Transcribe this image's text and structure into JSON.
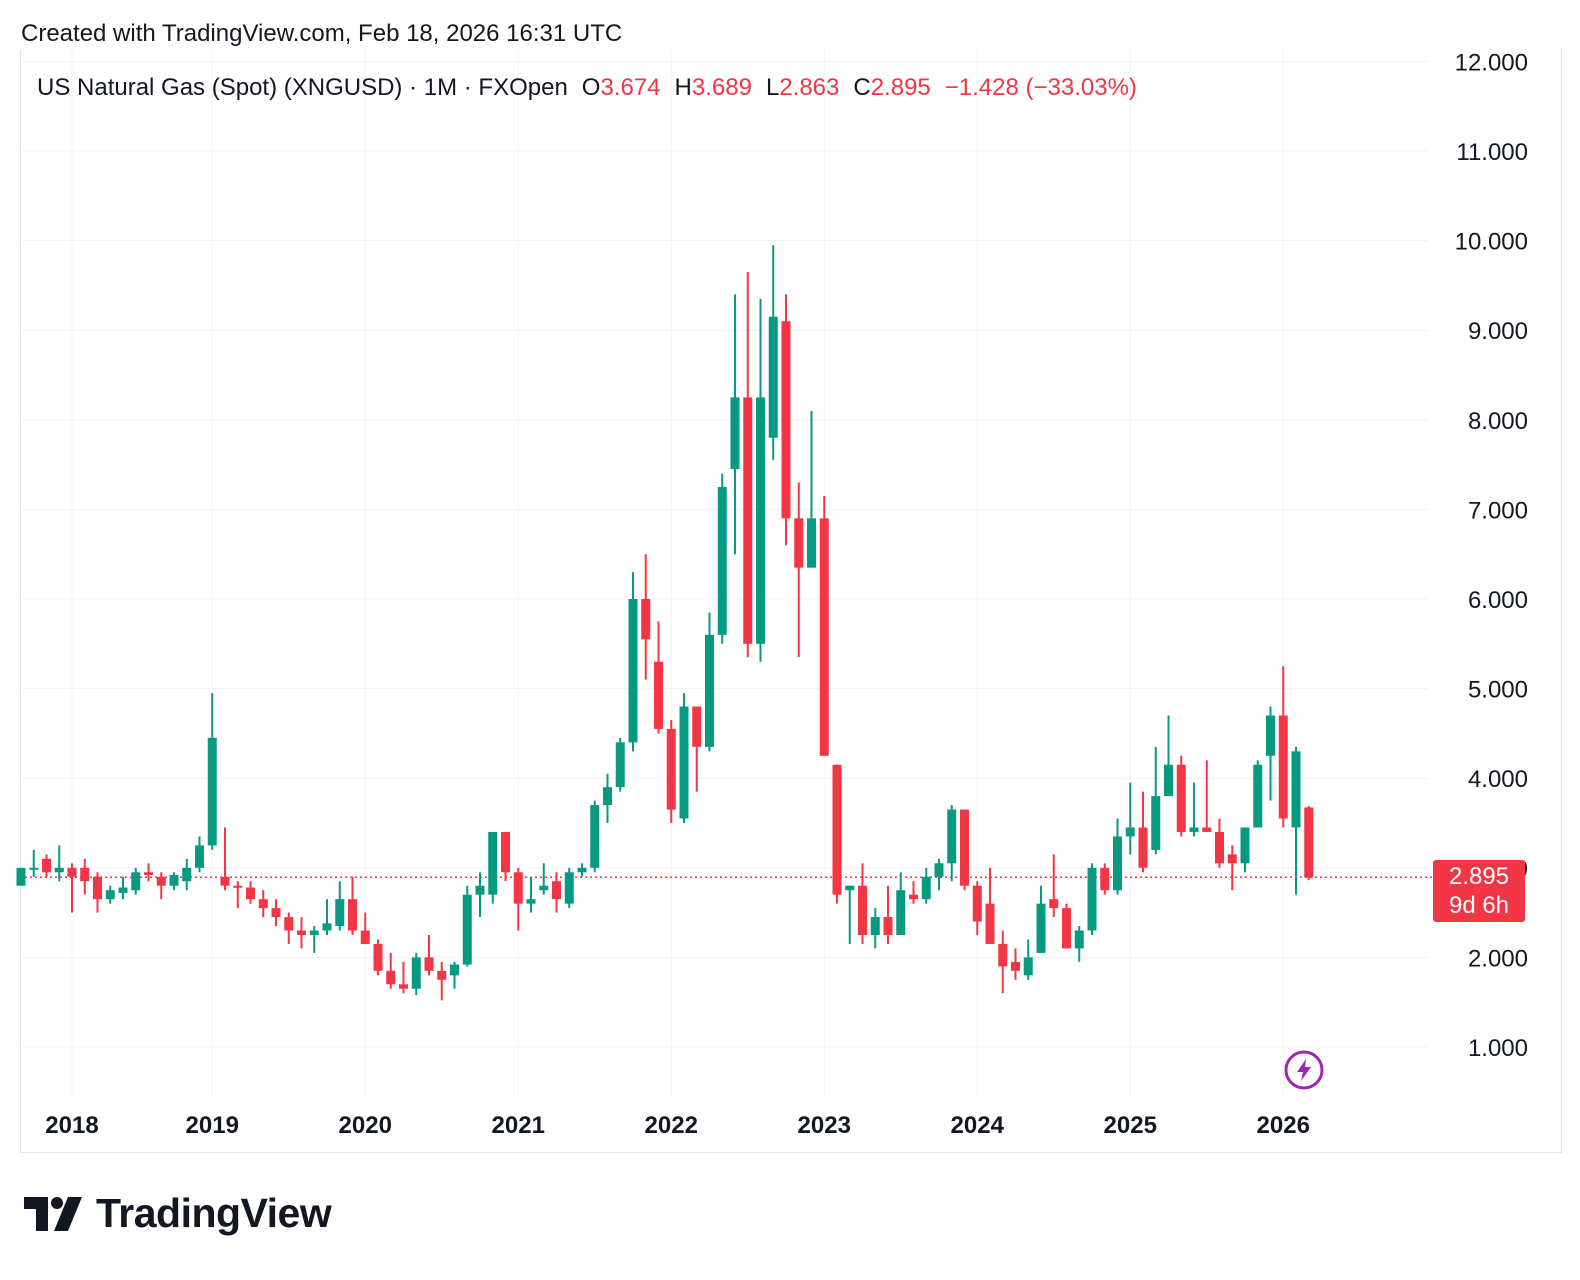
{
  "header": {
    "created_text": "Created with TradingView.com, Feb 18, 2026 16:31 UTC"
  },
  "legend": {
    "symbol": "US Natural Gas (Spot) (XNGUSD) · 1M · FXOpen",
    "open_label": "O",
    "open_value": "3.674",
    "high_label": "H",
    "high_value": "3.689",
    "low_label": "L",
    "low_value": "2.863",
    "close_label": "C",
    "close_value": "2.895",
    "change": "−1.428 (−33.03%)"
  },
  "price_tag": {
    "price": "2.895",
    "countdown": "9d 6h"
  },
  "brand": {
    "name": "TradingView"
  },
  "colors": {
    "up": "#089981",
    "down": "#f23645",
    "grid": "#f0f3fa",
    "text": "#131722",
    "alert": "#9c27b0"
  },
  "icons": {
    "logo": "tradingview-logo-icon",
    "alert": "lightning-alert-icon"
  },
  "chart_data": {
    "type": "candlestick",
    "title": "US Natural Gas (Spot) (XNGUSD) · 1M · FXOpen",
    "interval": "1M",
    "y_ticks": [
      "1.000",
      "2.000",
      "3.000",
      "4.000",
      "5.000",
      "6.000",
      "7.000",
      "8.000",
      "9.000",
      "10.000",
      "11.000",
      "12.000"
    ],
    "ylim": [
      0.45,
      12.1
    ],
    "x_ticks": [
      {
        "label": "2018",
        "index": 4
      },
      {
        "label": "2019",
        "index": 15
      },
      {
        "label": "2020",
        "index": 27
      },
      {
        "label": "2021",
        "index": 39
      },
      {
        "label": "2022",
        "index": 51
      },
      {
        "label": "2023",
        "index": 63
      },
      {
        "label": "2024",
        "index": 75
      },
      {
        "label": "2025",
        "index": 87
      },
      {
        "label": "2026",
        "index": 99
      }
    ],
    "last_price": 2.895,
    "candles": [
      [
        2.8,
        3.0,
        2.8,
        3.0
      ],
      [
        3.0,
        3.2,
        2.9,
        3.0
      ],
      [
        3.1,
        3.15,
        2.9,
        2.95
      ],
      [
        2.95,
        3.25,
        2.85,
        3.0
      ],
      [
        3.0,
        3.05,
        2.5,
        2.9
      ],
      [
        3.0,
        3.1,
        2.7,
        2.85
      ],
      [
        2.9,
        2.95,
        2.5,
        2.65
      ],
      [
        2.65,
        2.8,
        2.6,
        2.75
      ],
      [
        2.72,
        2.9,
        2.65,
        2.78
      ],
      [
        2.75,
        3.0,
        2.7,
        2.95
      ],
      [
        2.95,
        3.05,
        2.85,
        2.92
      ],
      [
        2.9,
        2.95,
        2.65,
        2.8
      ],
      [
        2.8,
        2.95,
        2.75,
        2.92
      ],
      [
        2.85,
        3.1,
        2.75,
        3.0
      ],
      [
        3.0,
        3.35,
        2.95,
        3.25
      ],
      [
        3.25,
        4.95,
        3.2,
        4.45
      ],
      [
        2.9,
        3.45,
        2.75,
        2.8
      ],
      [
        2.8,
        2.85,
        2.55,
        2.78
      ],
      [
        2.78,
        2.85,
        2.6,
        2.65
      ],
      [
        2.65,
        2.75,
        2.45,
        2.55
      ],
      [
        2.55,
        2.65,
        2.35,
        2.45
      ],
      [
        2.45,
        2.5,
        2.15,
        2.3
      ],
      [
        2.3,
        2.45,
        2.1,
        2.25
      ],
      [
        2.25,
        2.35,
        2.05,
        2.3
      ],
      [
        2.3,
        2.65,
        2.25,
        2.38
      ],
      [
        2.35,
        2.85,
        2.3,
        2.65
      ],
      [
        2.65,
        2.9,
        2.25,
        2.3
      ],
      [
        2.3,
        2.5,
        2.15,
        2.15
      ],
      [
        2.15,
        2.2,
        1.8,
        1.85
      ],
      [
        1.85,
        2.05,
        1.65,
        1.7
      ],
      [
        1.7,
        1.95,
        1.6,
        1.65
      ],
      [
        1.65,
        2.05,
        1.58,
        2.0
      ],
      [
        2.0,
        2.25,
        1.8,
        1.85
      ],
      [
        1.85,
        1.95,
        1.52,
        1.75
      ],
      [
        1.8,
        1.95,
        1.65,
        1.92
      ],
      [
        1.92,
        2.8,
        1.9,
        2.7
      ],
      [
        2.7,
        2.95,
        2.45,
        2.8
      ],
      [
        2.7,
        3.4,
        2.6,
        3.4
      ],
      [
        3.4,
        3.4,
        2.85,
        2.95
      ],
      [
        2.95,
        3.0,
        2.3,
        2.6
      ],
      [
        2.6,
        2.9,
        2.5,
        2.65
      ],
      [
        2.75,
        3.05,
        2.7,
        2.8
      ],
      [
        2.85,
        2.95,
        2.5,
        2.65
      ],
      [
        2.6,
        3.0,
        2.55,
        2.95
      ],
      [
        2.95,
        3.05,
        2.9,
        3.0
      ],
      [
        3.0,
        3.75,
        2.95,
        3.7
      ],
      [
        3.7,
        4.05,
        3.5,
        3.9
      ],
      [
        3.9,
        4.45,
        3.85,
        4.4
      ],
      [
        4.4,
        6.3,
        4.3,
        6.0
      ],
      [
        6.0,
        6.5,
        5.1,
        5.55
      ],
      [
        5.3,
        5.75,
        4.5,
        4.55
      ],
      [
        4.55,
        4.65,
        3.5,
        3.65
      ],
      [
        3.55,
        4.95,
        3.5,
        4.8
      ],
      [
        4.8,
        4.8,
        3.85,
        4.35
      ],
      [
        4.35,
        5.85,
        4.3,
        5.6
      ],
      [
        5.6,
        7.4,
        5.5,
        7.25
      ],
      [
        7.45,
        9.4,
        6.5,
        8.25
      ],
      [
        8.25,
        9.65,
        5.35,
        5.5
      ],
      [
        5.5,
        9.35,
        5.3,
        8.25
      ],
      [
        7.8,
        9.95,
        7.55,
        9.15
      ],
      [
        9.1,
        9.4,
        6.6,
        6.9
      ],
      [
        6.9,
        7.3,
        5.35,
        6.35
      ],
      [
        6.35,
        8.1,
        6.35,
        6.9
      ],
      [
        6.9,
        7.15,
        4.25,
        4.25
      ],
      [
        4.15,
        4.15,
        2.6,
        2.7
      ],
      [
        2.75,
        2.8,
        2.15,
        2.8
      ],
      [
        2.8,
        3.05,
        2.15,
        2.25
      ],
      [
        2.25,
        2.55,
        2.1,
        2.45
      ],
      [
        2.45,
        2.8,
        2.15,
        2.25
      ],
      [
        2.25,
        2.95,
        2.25,
        2.75
      ],
      [
        2.7,
        2.85,
        2.6,
        2.65
      ],
      [
        2.65,
        3.0,
        2.6,
        2.9
      ],
      [
        2.9,
        3.1,
        2.75,
        3.05
      ],
      [
        3.05,
        3.7,
        2.85,
        3.65
      ],
      [
        3.65,
        3.65,
        2.75,
        2.8
      ],
      [
        2.8,
        2.85,
        2.25,
        2.4
      ],
      [
        2.6,
        3.0,
        2.2,
        2.15
      ],
      [
        2.15,
        2.3,
        1.6,
        1.9
      ],
      [
        1.95,
        2.1,
        1.75,
        1.85
      ],
      [
        1.8,
        2.2,
        1.75,
        2.0
      ],
      [
        2.05,
        2.8,
        2.05,
        2.6
      ],
      [
        2.65,
        3.15,
        2.45,
        2.55
      ],
      [
        2.55,
        2.6,
        2.1,
        2.1
      ],
      [
        2.1,
        2.35,
        1.95,
        2.3
      ],
      [
        2.3,
        3.05,
        2.25,
        3.0
      ],
      [
        3.0,
        3.05,
        2.7,
        2.75
      ],
      [
        2.75,
        3.55,
        2.7,
        3.35
      ],
      [
        3.35,
        3.95,
        3.15,
        3.45
      ],
      [
        3.45,
        3.85,
        2.95,
        3.0
      ],
      [
        3.2,
        4.35,
        3.15,
        3.8
      ],
      [
        3.8,
        4.7,
        3.8,
        4.15
      ],
      [
        4.15,
        4.25,
        3.35,
        3.4
      ],
      [
        3.4,
        3.95,
        3.35,
        3.45
      ],
      [
        3.45,
        4.2,
        3.4,
        3.4
      ],
      [
        3.4,
        3.55,
        3.0,
        3.05
      ],
      [
        3.15,
        3.25,
        2.75,
        3.05
      ],
      [
        3.05,
        3.45,
        2.95,
        3.45
      ],
      [
        3.45,
        4.2,
        3.45,
        4.15
      ],
      [
        4.25,
        4.8,
        3.75,
        4.7
      ],
      [
        4.7,
        5.25,
        3.45,
        3.55
      ],
      [
        3.45,
        4.35,
        2.7,
        4.3
      ],
      [
        3.674,
        3.689,
        2.863,
        2.895
      ]
    ]
  }
}
